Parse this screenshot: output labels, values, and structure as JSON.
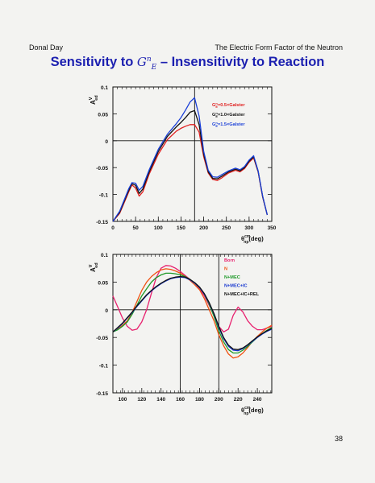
{
  "header": {
    "left": "Donal Day",
    "right": "The Electric Form Factor of the Neutron"
  },
  "title": {
    "before": "Sensitivity to ",
    "g": "G",
    "sup": "n",
    "sub": "E",
    "after": " – Insensitivity to Reaction"
  },
  "page_number": "38",
  "chart_data": [
    {
      "type": "line",
      "ylabel": "A_ed^V",
      "xlabel": "θ_np^cm(deg)",
      "xlim": [
        0,
        350
      ],
      "ylim": [
        -0.15,
        0.1
      ],
      "xticks": [
        0,
        50,
        100,
        150,
        200,
        250,
        300,
        350
      ],
      "yticks": [
        0.1,
        0.05,
        0,
        -0.05,
        -0.1,
        -0.15
      ],
      "vlines": [
        180
      ],
      "hline": 0,
      "legend_position": "top-right",
      "series": [
        {
          "name": "G_E^n=0.5×Galster",
          "color": "#e02020",
          "x": [
            0,
            15,
            35,
            42,
            50,
            58,
            66,
            80,
            100,
            120,
            140,
            150,
            160,
            170,
            180,
            190,
            200,
            210,
            220,
            230,
            240,
            255,
            270,
            280,
            290,
            300,
            310,
            320,
            330,
            340
          ],
          "y": [
            -0.15,
            -0.135,
            -0.095,
            -0.082,
            -0.088,
            -0.103,
            -0.095,
            -0.062,
            -0.025,
            0.002,
            0.018,
            0.023,
            0.027,
            0.03,
            0.03,
            0.016,
            -0.03,
            -0.06,
            -0.072,
            -0.074,
            -0.069,
            -0.06,
            -0.055,
            -0.058,
            -0.052,
            -0.04,
            -0.032,
            -0.058,
            -0.105,
            -0.138
          ]
        },
        {
          "name": "G_E^n=1.0×Galster",
          "color": "#111111",
          "x": [
            0,
            15,
            35,
            42,
            50,
            58,
            66,
            80,
            100,
            120,
            140,
            150,
            160,
            170,
            180,
            190,
            200,
            210,
            220,
            230,
            240,
            255,
            270,
            280,
            290,
            300,
            310,
            320,
            330,
            340
          ],
          "y": [
            -0.15,
            -0.133,
            -0.092,
            -0.08,
            -0.083,
            -0.098,
            -0.09,
            -0.058,
            -0.02,
            0.008,
            0.026,
            0.034,
            0.043,
            0.053,
            0.056,
            0.03,
            -0.025,
            -0.058,
            -0.07,
            -0.071,
            -0.066,
            -0.058,
            -0.053,
            -0.056,
            -0.05,
            -0.038,
            -0.03,
            -0.057,
            -0.104,
            -0.138
          ]
        },
        {
          "name": "G_E^n=1.5×Galster",
          "color": "#1a3fd8",
          "x": [
            0,
            15,
            35,
            42,
            50,
            58,
            66,
            80,
            100,
            120,
            140,
            150,
            160,
            170,
            180,
            190,
            200,
            210,
            220,
            230,
            240,
            255,
            270,
            280,
            290,
            300,
            310,
            320,
            330,
            340
          ],
          "y": [
            -0.15,
            -0.131,
            -0.089,
            -0.078,
            -0.079,
            -0.092,
            -0.085,
            -0.054,
            -0.016,
            0.012,
            0.032,
            0.043,
            0.057,
            0.072,
            0.08,
            0.046,
            -0.02,
            -0.055,
            -0.067,
            -0.068,
            -0.063,
            -0.056,
            -0.051,
            -0.054,
            -0.048,
            -0.036,
            -0.028,
            -0.056,
            -0.103,
            -0.138
          ]
        }
      ]
    },
    {
      "type": "line",
      "ylabel": "A_ed^V",
      "xlabel": "θ_np^cm(deg)",
      "xlim": [
        90,
        255
      ],
      "ylim": [
        -0.15,
        0.1
      ],
      "xticks": [
        100,
        120,
        140,
        160,
        180,
        200,
        220,
        240
      ],
      "yticks": [
        0.1,
        0.05,
        0,
        -0.05,
        -0.1,
        -0.15
      ],
      "vlines": [
        160,
        200
      ],
      "hline": 0,
      "legend_position": "top-right",
      "series": [
        {
          "name": "Born",
          "color": "#e8206e",
          "x": [
            90,
            95,
            100,
            105,
            110,
            115,
            120,
            125,
            130,
            135,
            140,
            145,
            150,
            155,
            160,
            165,
            170,
            175,
            180,
            185,
            190,
            195,
            200,
            205,
            210,
            215,
            220,
            225,
            230,
            235,
            240,
            245,
            250,
            255
          ],
          "y": [
            0.025,
            0.005,
            -0.015,
            -0.03,
            -0.037,
            -0.035,
            -0.022,
            0.0,
            0.03,
            0.058,
            0.075,
            0.08,
            0.079,
            0.075,
            0.069,
            0.062,
            0.055,
            0.048,
            0.038,
            0.025,
            0.008,
            -0.01,
            -0.03,
            -0.04,
            -0.035,
            -0.01,
            0.005,
            -0.004,
            -0.02,
            -0.03,
            -0.036,
            -0.036,
            -0.033,
            -0.03
          ]
        },
        {
          "name": "N",
          "color": "#f05010",
          "x": [
            90,
            95,
            100,
            105,
            110,
            115,
            120,
            125,
            130,
            135,
            140,
            145,
            150,
            155,
            160,
            165,
            170,
            175,
            180,
            185,
            190,
            195,
            200,
            205,
            210,
            215,
            220,
            225,
            230,
            235,
            240,
            245,
            250,
            255
          ],
          "y": [
            -0.04,
            -0.035,
            -0.028,
            -0.02,
            -0.005,
            0.015,
            0.035,
            0.05,
            0.06,
            0.067,
            0.072,
            0.074,
            0.073,
            0.07,
            0.066,
            0.06,
            0.053,
            0.045,
            0.036,
            0.02,
            0.0,
            -0.02,
            -0.045,
            -0.065,
            -0.08,
            -0.087,
            -0.085,
            -0.078,
            -0.068,
            -0.057,
            -0.048,
            -0.04,
            -0.033,
            -0.028
          ]
        },
        {
          "name": "N+MEC",
          "color": "#1e9a28",
          "x": [
            90,
            95,
            100,
            105,
            110,
            115,
            120,
            125,
            130,
            135,
            140,
            145,
            150,
            155,
            160,
            165,
            170,
            175,
            180,
            185,
            190,
            195,
            200,
            205,
            210,
            215,
            220,
            225,
            230,
            235,
            240,
            245,
            250,
            255
          ],
          "y": [
            -0.04,
            -0.036,
            -0.03,
            -0.022,
            -0.008,
            0.008,
            0.025,
            0.038,
            0.05,
            0.058,
            0.063,
            0.066,
            0.066,
            0.065,
            0.063,
            0.06,
            0.055,
            0.048,
            0.04,
            0.028,
            0.01,
            -0.012,
            -0.038,
            -0.058,
            -0.072,
            -0.078,
            -0.078,
            -0.073,
            -0.066,
            -0.058,
            -0.05,
            -0.043,
            -0.037,
            -0.032
          ]
        },
        {
          "name": "N+MEC+IC",
          "color": "#1838d0",
          "x": [
            90,
            95,
            100,
            105,
            110,
            115,
            120,
            125,
            130,
            135,
            140,
            145,
            150,
            155,
            160,
            165,
            170,
            175,
            180,
            185,
            190,
            195,
            200,
            205,
            210,
            215,
            220,
            225,
            230,
            235,
            240,
            245,
            250,
            255
          ],
          "y": [
            -0.04,
            -0.033,
            -0.025,
            -0.015,
            -0.005,
            0.006,
            0.016,
            0.026,
            0.034,
            0.041,
            0.047,
            0.052,
            0.056,
            0.058,
            0.059,
            0.058,
            0.054,
            0.048,
            0.04,
            0.028,
            0.012,
            -0.008,
            -0.032,
            -0.052,
            -0.066,
            -0.073,
            -0.074,
            -0.07,
            -0.064,
            -0.057,
            -0.05,
            -0.044,
            -0.039,
            -0.035
          ]
        },
        {
          "name": "N+MEC+IC+REL",
          "color": "#111111",
          "x": [
            90,
            95,
            100,
            105,
            110,
            115,
            120,
            125,
            130,
            135,
            140,
            145,
            150,
            155,
            160,
            165,
            170,
            175,
            180,
            185,
            190,
            195,
            200,
            205,
            210,
            215,
            220,
            225,
            230,
            235,
            240,
            245,
            250,
            255
          ],
          "y": [
            -0.04,
            -0.032,
            -0.024,
            -0.014,
            -0.004,
            0.007,
            0.017,
            0.027,
            0.035,
            0.042,
            0.048,
            0.053,
            0.057,
            0.059,
            0.06,
            0.059,
            0.055,
            0.049,
            0.041,
            0.029,
            0.013,
            -0.007,
            -0.03,
            -0.05,
            -0.064,
            -0.071,
            -0.072,
            -0.069,
            -0.063,
            -0.056,
            -0.049,
            -0.043,
            -0.038,
            -0.034
          ]
        }
      ]
    }
  ]
}
